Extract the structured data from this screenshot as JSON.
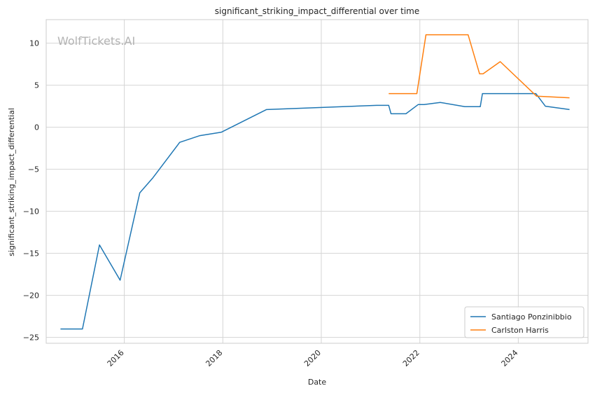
{
  "chart_data": {
    "type": "line",
    "title": "significant_striking_impact_differential over time",
    "xlabel": "Date",
    "ylabel": "significant_striking_impact_differential",
    "watermark": "WolfTickets.AI",
    "xlim": [
      "2014-06-01",
      "2025-06-01"
    ],
    "ylim": [
      -25.7,
      12.8
    ],
    "x_ticks": [
      {
        "date": "2016-01-01",
        "label": "2016"
      },
      {
        "date": "2018-01-01",
        "label": "2018"
      },
      {
        "date": "2020-01-01",
        "label": "2020"
      },
      {
        "date": "2022-01-01",
        "label": "2022"
      },
      {
        "date": "2024-01-01",
        "label": "2024"
      }
    ],
    "y_ticks": [
      {
        "value": 10,
        "label": "10"
      },
      {
        "value": 5,
        "label": "5"
      },
      {
        "value": 0,
        "label": "0"
      },
      {
        "value": -5,
        "label": "−5"
      },
      {
        "value": -10,
        "label": "−10"
      },
      {
        "value": -15,
        "label": "−15"
      },
      {
        "value": -20,
        "label": "−20"
      },
      {
        "value": -25,
        "label": "−25"
      }
    ],
    "grid": true,
    "legend_position": "bottom-right",
    "series": [
      {
        "name": "Santiago Ponzinibbio",
        "color": "#1f77b4",
        "points": [
          {
            "x": "2014-09-15",
            "y": -24.0
          },
          {
            "x": "2015-02-25",
            "y": -24.0
          },
          {
            "x": "2015-07-01",
            "y": -14.0
          },
          {
            "x": "2015-12-01",
            "y": -18.2
          },
          {
            "x": "2016-04-25",
            "y": -7.8
          },
          {
            "x": "2016-08-01",
            "y": -6.0
          },
          {
            "x": "2017-02-15",
            "y": -1.8
          },
          {
            "x": "2017-07-15",
            "y": -1.0
          },
          {
            "x": "2017-12-20",
            "y": -0.6
          },
          {
            "x": "2018-11-20",
            "y": 2.1
          },
          {
            "x": "2021-02-15",
            "y": 2.6
          },
          {
            "x": "2021-05-15",
            "y": 2.6
          },
          {
            "x": "2021-06-01",
            "y": 1.6
          },
          {
            "x": "2021-09-20",
            "y": 1.6
          },
          {
            "x": "2021-12-20",
            "y": 2.7
          },
          {
            "x": "2022-02-01",
            "y": 2.7
          },
          {
            "x": "2022-06-01",
            "y": 2.95
          },
          {
            "x": "2022-12-01",
            "y": 2.45
          },
          {
            "x": "2023-03-25",
            "y": 2.45
          },
          {
            "x": "2023-04-10",
            "y": 4.0
          },
          {
            "x": "2024-05-10",
            "y": 4.0
          },
          {
            "x": "2024-07-20",
            "y": 2.5
          },
          {
            "x": "2025-01-15",
            "y": 2.1
          }
        ]
      },
      {
        "name": "Carlston Harris",
        "color": "#ff7f0e",
        "points": [
          {
            "x": "2021-05-15",
            "y": 4.0
          },
          {
            "x": "2021-12-10",
            "y": 4.0
          },
          {
            "x": "2022-02-15",
            "y": 11.0
          },
          {
            "x": "2022-12-25",
            "y": 11.0
          },
          {
            "x": "2023-03-20",
            "y": 6.35
          },
          {
            "x": "2023-04-15",
            "y": 6.35
          },
          {
            "x": "2023-08-20",
            "y": 7.8
          },
          {
            "x": "2024-05-15",
            "y": 3.7
          },
          {
            "x": "2025-01-15",
            "y": 3.5
          }
        ]
      }
    ]
  }
}
